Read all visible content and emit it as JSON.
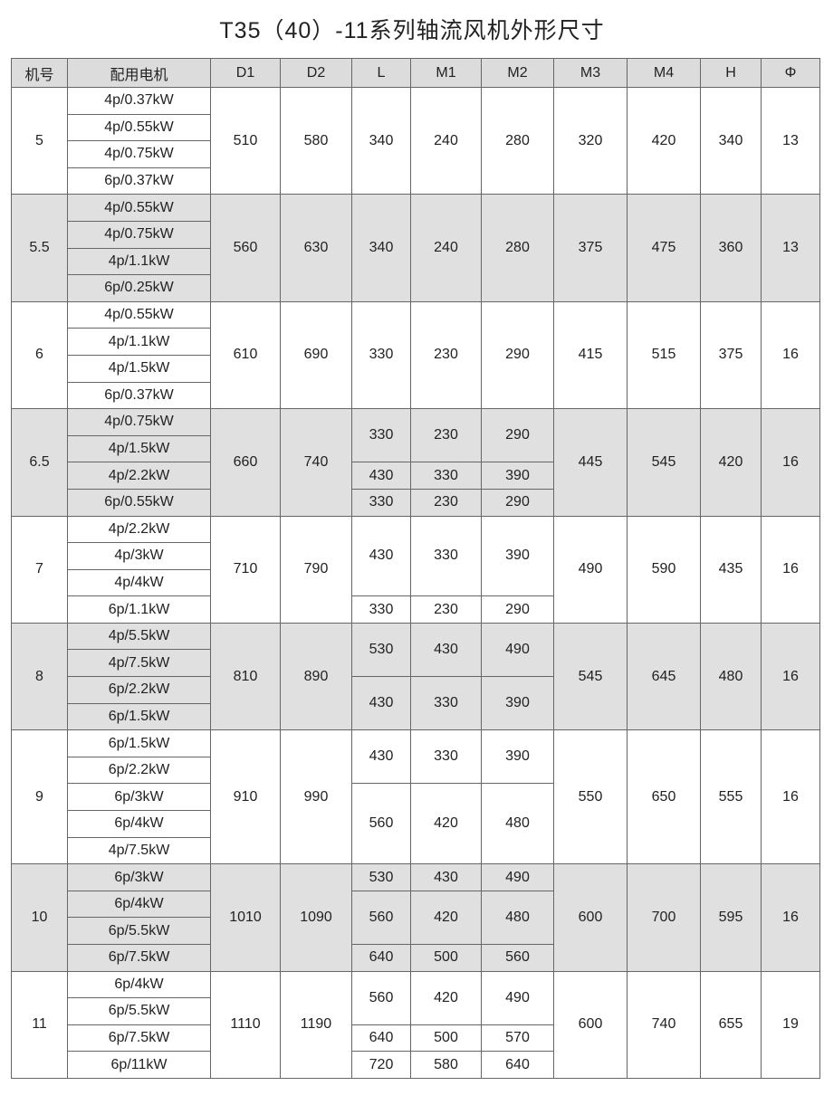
{
  "title": "T35（40）-11系列轴流风机外形尺寸",
  "headers": [
    "机号",
    "配用电机",
    "D1",
    "D2",
    "L",
    "M1",
    "M2",
    "M3",
    "M4",
    "H",
    "Φ"
  ],
  "shade_color": "#e0e0e0",
  "groups": [
    {
      "no": "5",
      "motors": [
        "4p/0.37kW",
        "4p/0.55kW",
        "4p/0.75kW",
        "6p/0.37kW"
      ],
      "D1": "510",
      "D2": "580",
      "segments": [
        {
          "rows": 4,
          "L": "340",
          "M1": "240",
          "M2": "280"
        }
      ],
      "M3": "320",
      "M4": "420",
      "H": "340",
      "phi": "13"
    },
    {
      "no": "5.5",
      "motors": [
        "4p/0.55kW",
        "4p/0.75kW",
        "4p/1.1kW",
        "6p/0.25kW"
      ],
      "D1": "560",
      "D2": "630",
      "segments": [
        {
          "rows": 4,
          "L": "340",
          "M1": "240",
          "M2": "280"
        }
      ],
      "M3": "375",
      "M4": "475",
      "H": "360",
      "phi": "13"
    },
    {
      "no": "6",
      "motors": [
        "4p/0.55kW",
        "4p/1.1kW",
        "4p/1.5kW",
        "6p/0.37kW"
      ],
      "D1": "610",
      "D2": "690",
      "segments": [
        {
          "rows": 4,
          "L": "330",
          "M1": "230",
          "M2": "290"
        }
      ],
      "M3": "415",
      "M4": "515",
      "H": "375",
      "phi": "16"
    },
    {
      "no": "6.5",
      "motors": [
        "4p/0.75kW",
        "4p/1.5kW",
        "4p/2.2kW",
        "6p/0.55kW"
      ],
      "D1": "660",
      "D2": "740",
      "segments": [
        {
          "rows": 2,
          "L": "330",
          "M1": "230",
          "M2": "290"
        },
        {
          "rows": 1,
          "L": "430",
          "M1": "330",
          "M2": "390"
        },
        {
          "rows": 1,
          "L": "330",
          "M1": "230",
          "M2": "290"
        }
      ],
      "M3": "445",
      "M4": "545",
      "H": "420",
      "phi": "16"
    },
    {
      "no": "7",
      "motors": [
        "4p/2.2kW",
        "4p/3kW",
        "4p/4kW",
        "6p/1.1kW"
      ],
      "D1": "710",
      "D2": "790",
      "segments": [
        {
          "rows": 3,
          "L": "430",
          "M1": "330",
          "M2": "390"
        },
        {
          "rows": 1,
          "L": "330",
          "M1": "230",
          "M2": "290"
        }
      ],
      "M3": "490",
      "M4": "590",
      "H": "435",
      "phi": "16"
    },
    {
      "no": "8",
      "motors": [
        "4p/5.5kW",
        "4p/7.5kW",
        "6p/2.2kW",
        "6p/1.5kW"
      ],
      "D1": "810",
      "D2": "890",
      "segments": [
        {
          "rows": 2,
          "L": "530",
          "M1": "430",
          "M2": "490"
        },
        {
          "rows": 2,
          "L": "430",
          "M1": "330",
          "M2": "390"
        }
      ],
      "M3": "545",
      "M4": "645",
      "H": "480",
      "phi": "16"
    },
    {
      "no": "9",
      "motors": [
        "6p/1.5kW",
        "6p/2.2kW",
        "6p/3kW",
        "6p/4kW",
        "4p/7.5kW"
      ],
      "D1": "910",
      "D2": "990",
      "segments": [
        {
          "rows": 2,
          "L": "430",
          "M1": "330",
          "M2": "390"
        },
        {
          "rows": 3,
          "L": "560",
          "M1": "420",
          "M2": "480"
        }
      ],
      "M3": "550",
      "M4": "650",
      "H": "555",
      "phi": "16"
    },
    {
      "no": "10",
      "motors": [
        "6p/3kW",
        "6p/4kW",
        "6p/5.5kW",
        "6p/7.5kW"
      ],
      "D1": "1010",
      "D2": "1090",
      "segments": [
        {
          "rows": 1,
          "L": "530",
          "M1": "430",
          "M2": "490"
        },
        {
          "rows": 2,
          "L": "560",
          "M1": "420",
          "M2": "480"
        },
        {
          "rows": 1,
          "L": "640",
          "M1": "500",
          "M2": "560"
        }
      ],
      "M3": "600",
      "M4": "700",
      "H": "595",
      "phi": "16"
    },
    {
      "no": "11",
      "motors": [
        "6p/4kW",
        "6p/5.5kW",
        "6p/7.5kW",
        "6p/11kW"
      ],
      "D1": "1110",
      "D2": "1190",
      "segments": [
        {
          "rows": 2,
          "L": "560",
          "M1": "420",
          "M2": "490"
        },
        {
          "rows": 1,
          "L": "640",
          "M1": "500",
          "M2": "570"
        },
        {
          "rows": 1,
          "L": "720",
          "M1": "580",
          "M2": "640"
        }
      ],
      "M3": "600",
      "M4": "740",
      "H": "655",
      "phi": "19"
    }
  ]
}
